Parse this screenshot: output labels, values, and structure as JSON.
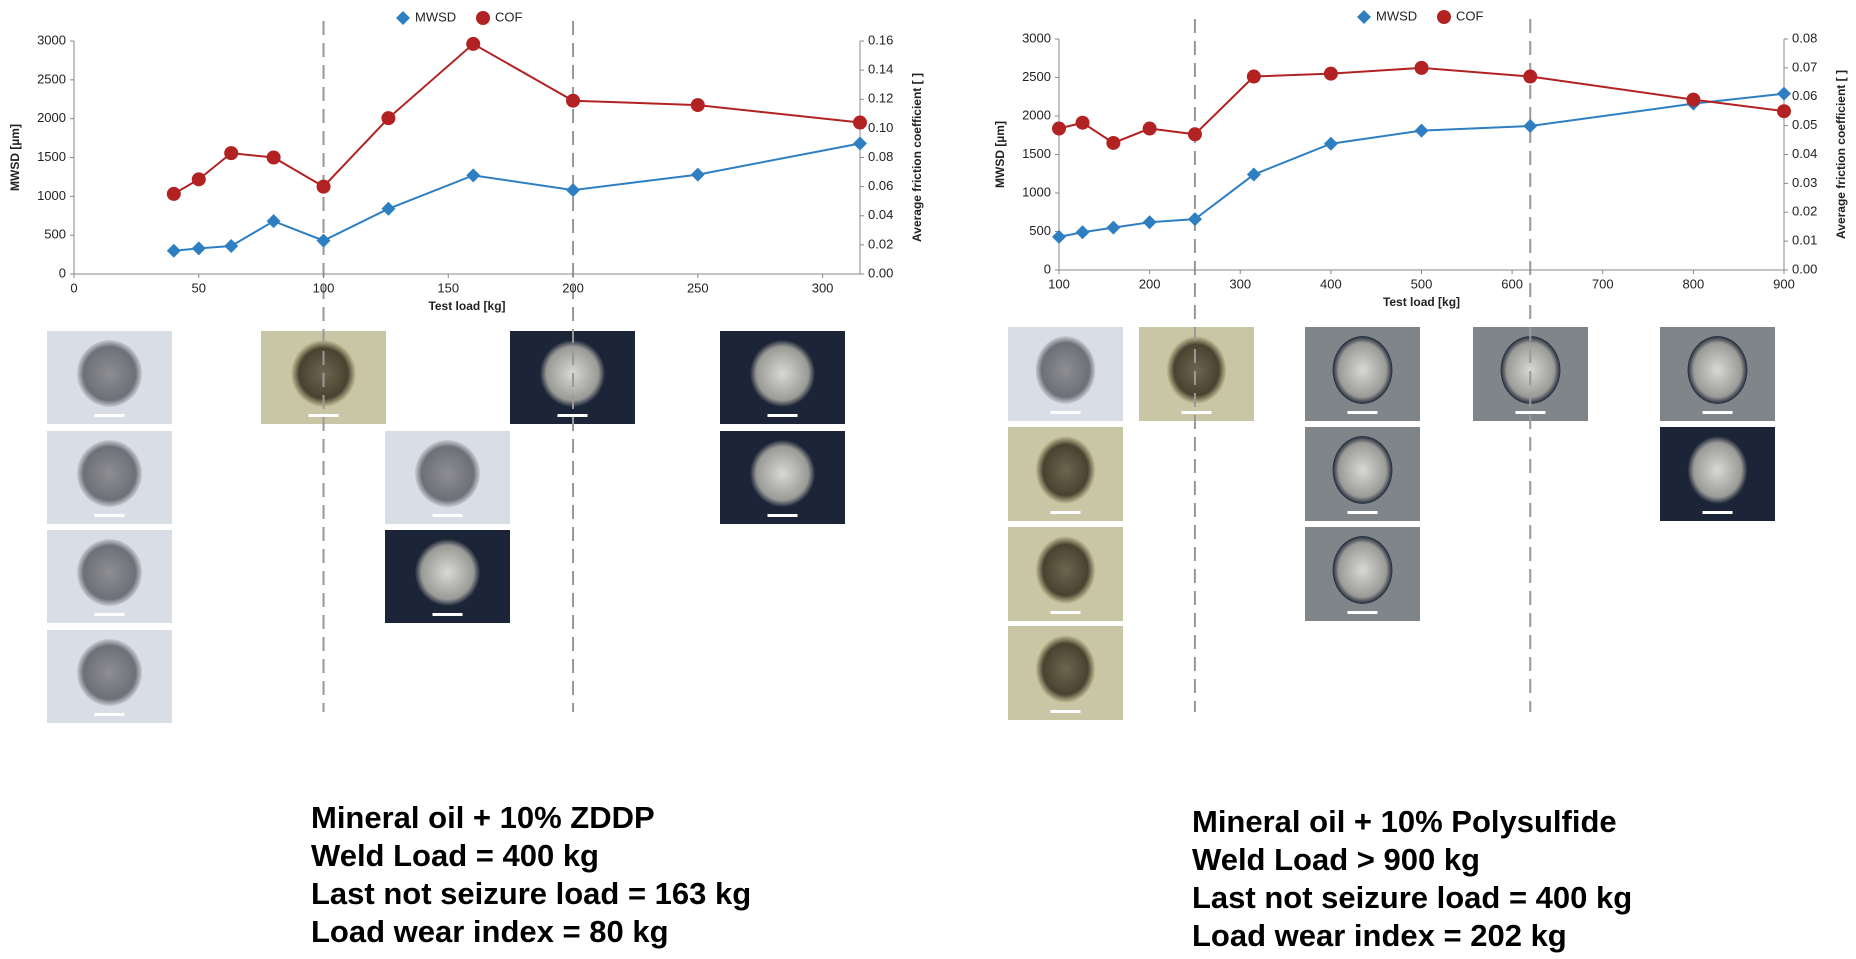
{
  "chart_data": [
    {
      "type": "line",
      "x": [
        40,
        50,
        63,
        80,
        100,
        126,
        160,
        200,
        250,
        315
      ],
      "series": [
        {
          "name": "MWSD",
          "color": "#2e7fc2",
          "marker": "diamond",
          "values": [
            300,
            330,
            360,
            680,
            430,
            840,
            1270,
            1080,
            1280,
            1680
          ]
        },
        {
          "name": "COF",
          "color": "#b22222",
          "marker": "circle",
          "axis": "y2",
          "values": [
            0.055,
            0.065,
            0.083,
            0.08,
            0.06,
            0.107,
            0.158,
            0.119,
            0.116,
            0.104
          ]
        }
      ],
      "xlim": [
        0,
        315
      ],
      "xticks": [
        0,
        50,
        100,
        150,
        200,
        250,
        300
      ],
      "ylim": [
        0,
        3000
      ],
      "yticks": [
        0,
        500,
        1000,
        1500,
        2000,
        2500,
        3000
      ],
      "y2lim": [
        0,
        0.16
      ],
      "y2ticks": [
        {
          "value": 0,
          "label": "0.00"
        },
        {
          "value": 0.02,
          "label": "0.02"
        },
        {
          "value": 0.04,
          "label": "0.04"
        },
        {
          "value": 0.06,
          "label": "0.06"
        },
        {
          "value": 0.08,
          "label": "0.08"
        },
        {
          "value": 0.1,
          "label": "0.10"
        },
        {
          "value": 0.12,
          "label": "0.12"
        },
        {
          "value": 0.14,
          "label": "0.14"
        },
        {
          "value": 0.16,
          "label": "0.16"
        }
      ],
      "xlabel": "Test load [kg]",
      "ylabel": "MWSD [µm]",
      "y2label": "Average friction coefficient [ ]",
      "reference_lines": [
        100,
        200
      ],
      "annotations": [
        "Mineral oil + 10% ZDDP",
        "Weld Load = 400 kg",
        "Last not seizure load = 163 kg",
        "Load wear index = 80 kg"
      ]
    },
    {
      "type": "line",
      "x": [
        100,
        126,
        160,
        200,
        250,
        315,
        400,
        500,
        620,
        800,
        900
      ],
      "series": [
        {
          "name": "MWSD",
          "color": "#2e7fc2",
          "marker": "diamond",
          "values": [
            430,
            490,
            550,
            620,
            660,
            1240,
            1640,
            1810,
            1870,
            2160,
            2290
          ]
        },
        {
          "name": "COF",
          "color": "#b22222",
          "marker": "circle",
          "axis": "y2",
          "values": [
            0.049,
            0.051,
            0.044,
            0.049,
            0.047,
            0.067,
            0.068,
            0.07,
            0.067,
            0.059,
            0.055
          ]
        }
      ],
      "xlim": [
        100,
        900
      ],
      "xticks": [
        100,
        200,
        300,
        400,
        500,
        600,
        700,
        800,
        900
      ],
      "ylim": [
        0,
        3000
      ],
      "yticks": [
        0,
        500,
        1000,
        1500,
        2000,
        2500,
        3000
      ],
      "y2lim": [
        0,
        0.08
      ],
      "y2ticks": [
        {
          "value": 0,
          "label": "0.00"
        },
        {
          "value": 0.01,
          "label": "0.01"
        },
        {
          "value": 0.02,
          "label": "0.02"
        },
        {
          "value": 0.03,
          "label": "0.03"
        },
        {
          "value": 0.04,
          "label": "0.04"
        },
        {
          "value": 0.05,
          "label": "0.05"
        },
        {
          "value": 0.06,
          "label": "0.06"
        },
        {
          "value": 0.07,
          "label": "0.07"
        },
        {
          "value": 0.08,
          "label": "0.08"
        }
      ],
      "xlabel": "Test load [kg]",
      "ylabel": "MWSD [µm]",
      "y2label": "Average friction coefficient [ ]",
      "reference_lines": [
        250,
        620
      ],
      "annotations": [
        "Mineral oil + 10% Polysulfide",
        "Weld Load > 900 kg",
        "Last not seizure load = 400 kg",
        "Load wear index = 202 kg"
      ]
    }
  ]
}
